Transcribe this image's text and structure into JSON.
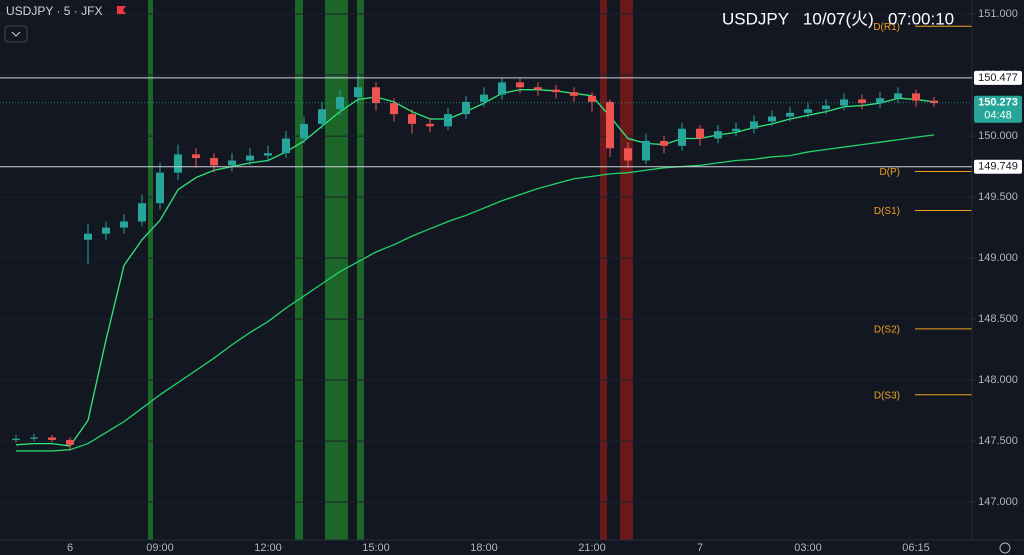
{
  "header": {
    "symbol": "USDJPY · 5 · JFX",
    "clock": "USDJPY   10/07(火)   07:00:10"
  },
  "chart_data": {
    "type": "candlestick",
    "categories": [
      null,
      null,
      null,
      "6",
      null,
      null,
      null,
      null,
      "09:00",
      null,
      null,
      null,
      null,
      null,
      "12:00",
      null,
      null,
      null,
      null,
      null,
      "15:00",
      null,
      null,
      null,
      null,
      null,
      "18:00",
      null,
      null,
      null,
      null,
      null,
      "21:00",
      null,
      null,
      null,
      null,
      null,
      "7",
      null,
      null,
      null,
      null,
      null,
      "03:00",
      null,
      null,
      null,
      null,
      null,
      "06:15",
      null
    ],
    "open": [
      147.51,
      147.52,
      147.53,
      147.51,
      149.15,
      149.2,
      149.25,
      149.3,
      149.45,
      149.7,
      149.85,
      149.82,
      149.76,
      149.8,
      149.84,
      149.86,
      149.98,
      150.1,
      150.22,
      150.32,
      150.4,
      150.27,
      150.18,
      150.1,
      150.08,
      150.18,
      150.28,
      150.34,
      150.44,
      150.4,
      150.38,
      150.36,
      150.33,
      150.28,
      149.9,
      149.8,
      149.96,
      149.92,
      150.06,
      149.98,
      150.04,
      150.06,
      150.12,
      150.16,
      150.19,
      150.22,
      150.25,
      150.3,
      150.27,
      150.31,
      150.35,
      150.29
    ],
    "high": [
      147.55,
      147.56,
      147.55,
      147.53,
      149.28,
      149.3,
      149.36,
      149.52,
      149.78,
      149.93,
      149.9,
      149.86,
      149.86,
      149.9,
      149.92,
      150.04,
      150.16,
      150.28,
      150.38,
      150.5,
      150.44,
      150.31,
      150.22,
      150.15,
      150.23,
      150.33,
      150.4,
      150.48,
      150.47,
      150.44,
      150.42,
      150.4,
      150.36,
      150.3,
      149.95,
      150.02,
      150.0,
      150.11,
      150.09,
      150.09,
      150.11,
      150.17,
      150.21,
      150.24,
      150.27,
      150.3,
      150.35,
      150.34,
      150.36,
      150.4,
      150.38,
      150.32
    ],
    "low": [
      147.49,
      147.5,
      147.49,
      147.42,
      148.95,
      149.15,
      149.2,
      149.26,
      149.4,
      149.64,
      149.74,
      149.7,
      149.71,
      149.76,
      149.79,
      149.82,
      149.94,
      150.06,
      150.17,
      150.27,
      150.21,
      150.12,
      150.02,
      150.03,
      150.05,
      150.14,
      150.24,
      150.3,
      150.35,
      150.33,
      150.31,
      150.28,
      150.2,
      149.83,
      149.74,
      149.77,
      149.86,
      149.88,
      149.92,
      149.94,
      150.0,
      150.02,
      150.08,
      150.12,
      150.15,
      150.18,
      150.21,
      150.22,
      150.23,
      150.27,
      150.24,
      150.24
    ],
    "close": [
      147.52,
      147.53,
      147.51,
      147.47,
      149.2,
      149.25,
      149.3,
      149.45,
      149.7,
      149.85,
      149.82,
      149.76,
      149.8,
      149.84,
      149.86,
      149.98,
      150.1,
      150.22,
      150.32,
      150.4,
      150.27,
      150.18,
      150.1,
      150.08,
      150.18,
      150.28,
      150.34,
      150.44,
      150.4,
      150.38,
      150.36,
      150.33,
      150.28,
      149.9,
      149.8,
      149.96,
      149.92,
      150.06,
      149.98,
      150.04,
      150.06,
      150.12,
      150.16,
      150.19,
      150.22,
      150.25,
      150.3,
      150.27,
      150.31,
      150.35,
      150.29,
      150.27
    ],
    "up_color": "#26a69a",
    "down_color": "#ef5350",
    "series": [
      {
        "color": "#2ee87a",
        "values": [
          147.47,
          147.48,
          147.48,
          147.46,
          147.67,
          148.33,
          148.94,
          149.15,
          149.31,
          149.56,
          149.66,
          149.72,
          149.75,
          149.78,
          149.8,
          149.87,
          149.96,
          150.08,
          150.2,
          150.3,
          150.32,
          150.28,
          150.2,
          150.14,
          150.14,
          150.2,
          150.27,
          150.35,
          150.38,
          150.38,
          150.37,
          150.35,
          150.33,
          150.16,
          149.98,
          149.94,
          149.93,
          149.98,
          149.98,
          150.01,
          150.03,
          150.07,
          150.1,
          150.14,
          150.17,
          150.2,
          150.24,
          150.25,
          150.27,
          150.31,
          150.3,
          150.28
        ]
      },
      {
        "color": "#22d36a",
        "values": [
          147.42,
          147.42,
          147.42,
          147.43,
          147.48,
          147.57,
          147.66,
          147.77,
          147.88,
          147.98,
          148.08,
          148.18,
          148.29,
          148.39,
          148.48,
          148.59,
          148.69,
          148.79,
          148.89,
          148.97,
          149.05,
          149.11,
          149.18,
          149.24,
          149.3,
          149.35,
          149.41,
          149.47,
          149.52,
          149.57,
          149.61,
          149.65,
          149.67,
          149.69,
          149.7,
          149.72,
          149.74,
          149.75,
          149.76,
          149.78,
          149.8,
          149.81,
          149.83,
          149.84,
          149.87,
          149.89,
          149.91,
          149.93,
          149.95,
          149.97,
          149.99,
          150.01
        ]
      }
    ],
    "ylim": [
      146.69,
      151.115
    ],
    "yticks": [
      {
        "value": 147,
        "label": "147.000"
      },
      {
        "value": 147.5,
        "label": "147.500"
      },
      {
        "value": 148,
        "label": "148.000"
      },
      {
        "value": 148.5,
        "label": "148.500"
      },
      {
        "value": 149,
        "label": "149.000"
      },
      {
        "value": 149.5,
        "label": "149.500"
      },
      {
        "value": 150,
        "label": "150.000"
      },
      {
        "value": 150.5,
        "label": "150.500"
      },
      {
        "value": 151,
        "label": "151.000"
      }
    ],
    "grid": true,
    "levels": [
      {
        "value": 150.477,
        "label": "150.477",
        "color": "#d1d4dc"
      },
      {
        "value": 149.749,
        "label": "149.749",
        "color": "#d1d4dc"
      }
    ],
    "last_price": {
      "value": 150.273,
      "label": "150.273",
      "countdown": "04:48",
      "color": "#26a69a"
    },
    "pivot_color": "#f0a020",
    "pivots": [
      {
        "value": 150.9,
        "label": "D(R1)"
      },
      {
        "value": 149.71,
        "label": "D(P)"
      },
      {
        "value": 149.39,
        "label": "D(S1)"
      },
      {
        "value": 148.42,
        "label": "D(S2)"
      },
      {
        "value": 147.88,
        "label": "D(S3)"
      }
    ]
  }
}
